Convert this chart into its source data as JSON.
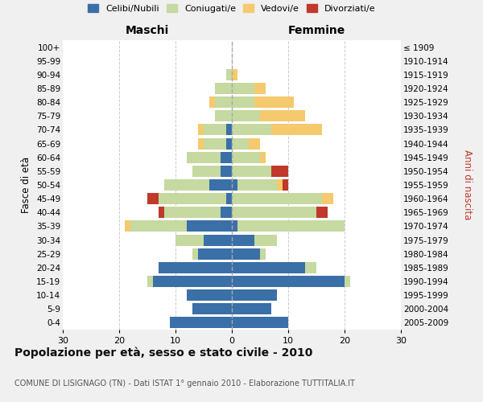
{
  "age_groups": [
    "0-4",
    "5-9",
    "10-14",
    "15-19",
    "20-24",
    "25-29",
    "30-34",
    "35-39",
    "40-44",
    "45-49",
    "50-54",
    "55-59",
    "60-64",
    "65-69",
    "70-74",
    "75-79",
    "80-84",
    "85-89",
    "90-94",
    "95-99",
    "100+"
  ],
  "birth_years": [
    "2005-2009",
    "2000-2004",
    "1995-1999",
    "1990-1994",
    "1985-1989",
    "1980-1984",
    "1975-1979",
    "1970-1974",
    "1965-1969",
    "1960-1964",
    "1955-1959",
    "1950-1954",
    "1945-1949",
    "1940-1944",
    "1935-1939",
    "1930-1934",
    "1925-1929",
    "1920-1924",
    "1915-1919",
    "1910-1914",
    "≤ 1909"
  ],
  "colors": {
    "celibi": "#3a6fa8",
    "coniugati": "#c5d9a0",
    "vedovi": "#f5c96e",
    "divorziati": "#c0392b"
  },
  "maschi": {
    "celibi": [
      11,
      7,
      8,
      14,
      13,
      6,
      5,
      8,
      2,
      1,
      4,
      2,
      2,
      1,
      1,
      0,
      0,
      0,
      0,
      0,
      0
    ],
    "coniugati": [
      0,
      0,
      0,
      1,
      0,
      1,
      5,
      10,
      10,
      12,
      8,
      5,
      6,
      4,
      4,
      3,
      3,
      3,
      1,
      0,
      0
    ],
    "vedovi": [
      0,
      0,
      0,
      0,
      0,
      0,
      0,
      1,
      0,
      0,
      0,
      0,
      0,
      1,
      1,
      0,
      1,
      0,
      0,
      0,
      0
    ],
    "divorziati": [
      0,
      0,
      0,
      0,
      0,
      0,
      0,
      0,
      1,
      2,
      0,
      0,
      0,
      0,
      0,
      0,
      0,
      0,
      0,
      0,
      0
    ]
  },
  "femmine": {
    "celibi": [
      10,
      7,
      8,
      20,
      13,
      5,
      4,
      1,
      0,
      0,
      1,
      0,
      0,
      0,
      0,
      0,
      0,
      0,
      0,
      0,
      0
    ],
    "coniugati": [
      0,
      0,
      0,
      1,
      2,
      1,
      4,
      19,
      15,
      16,
      7,
      7,
      5,
      3,
      7,
      5,
      4,
      4,
      0,
      0,
      0
    ],
    "vedovi": [
      0,
      0,
      0,
      0,
      0,
      0,
      0,
      0,
      0,
      2,
      1,
      0,
      1,
      2,
      9,
      8,
      7,
      2,
      1,
      0,
      0
    ],
    "divorziati": [
      0,
      0,
      0,
      0,
      0,
      0,
      0,
      0,
      2,
      0,
      1,
      3,
      0,
      0,
      0,
      0,
      0,
      0,
      0,
      0,
      0
    ]
  },
  "xlim": 30,
  "title": "Popolazione per età, sesso e stato civile - 2010",
  "subtitle": "COMUNE DI LISIGNAGO (TN) - Dati ISTAT 1° gennaio 2010 - Elaborazione TUTTITALIA.IT",
  "ylabel_left": "Fasce di età",
  "ylabel_right": "Anni di nascita",
  "maschi_label": "Maschi",
  "femmine_label": "Femmine",
  "legend_labels": [
    "Celibi/Nubili",
    "Coniugati/e",
    "Vedovi/e",
    "Divorziati/e"
  ],
  "bg_color": "#f0f0f0",
  "plot_bg": "#ffffff"
}
